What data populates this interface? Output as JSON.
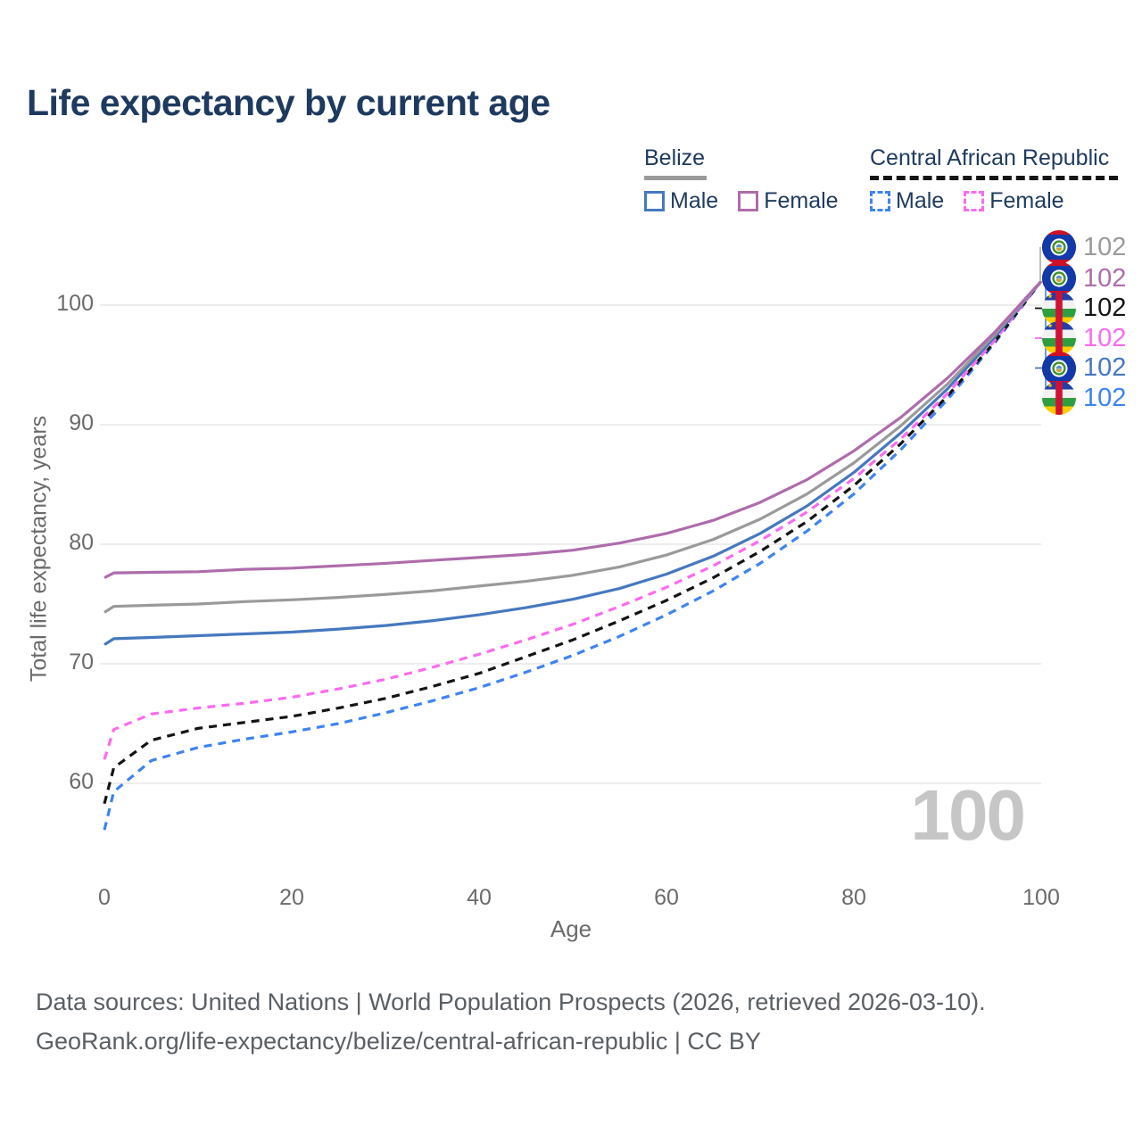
{
  "page": {
    "title": "Life expectancy by current age"
  },
  "legend": {
    "groups": [
      {
        "name": "Belize",
        "line_style": "solid",
        "line_color": "#9a9a9a",
        "items": [
          {
            "label": "Male",
            "color": "#4678bf",
            "dash": false
          },
          {
            "label": "Female",
            "color": "#ae6cab",
            "dash": false
          }
        ]
      },
      {
        "name": "Central African Republic",
        "line_style": "dashed",
        "line_color": "#141414",
        "items": [
          {
            "label": "Male",
            "color": "#3e83f0",
            "dash": true
          },
          {
            "label": "Female",
            "color": "#fb6af1",
            "dash": true
          }
        ]
      }
    ]
  },
  "chart_data": {
    "type": "line",
    "title": "Life expectancy by current age",
    "xlabel": "Age",
    "ylabel": "Total life expectancy, years",
    "x_ticks": [
      0,
      20,
      40,
      60,
      80,
      100
    ],
    "y_ticks": [
      60,
      70,
      80,
      90,
      100
    ],
    "xlim": [
      0,
      100
    ],
    "ylim": [
      56,
      103
    ],
    "grid": "horizontal",
    "legend_position": "top-right",
    "x": [
      0,
      1,
      5,
      10,
      15,
      20,
      25,
      30,
      35,
      40,
      45,
      50,
      55,
      60,
      65,
      70,
      75,
      80,
      85,
      90,
      95,
      100
    ],
    "series": [
      {
        "name": "Central African Republic Male",
        "country": "Central African Republic",
        "sex": "Male",
        "color": "#3e83f0",
        "dash": true,
        "values": [
          56.1,
          59.3,
          61.9,
          63.0,
          63.7,
          64.3,
          65.0,
          65.9,
          66.9,
          68.0,
          69.3,
          70.7,
          72.3,
          74.1,
          76.1,
          78.4,
          81.1,
          84.2,
          87.9,
          92.1,
          96.8,
          102
        ]
      },
      {
        "name": "Central African Republic Both sexes",
        "country": "Central African Republic",
        "sex": "Both",
        "color": "#141414",
        "dash": true,
        "values": [
          58.3,
          61.3,
          63.6,
          64.6,
          65.1,
          65.6,
          66.3,
          67.1,
          68.1,
          69.2,
          70.6,
          72.0,
          73.6,
          75.3,
          77.2,
          79.4,
          81.9,
          84.9,
          88.4,
          92.4,
          96.9,
          102
        ]
      },
      {
        "name": "Central African Republic Female",
        "country": "Central African Republic",
        "sex": "Female",
        "color": "#fb6af1",
        "dash": true,
        "values": [
          62.0,
          64.5,
          65.8,
          66.3,
          66.7,
          67.2,
          67.9,
          68.7,
          69.7,
          70.8,
          72.0,
          73.3,
          74.8,
          76.4,
          78.2,
          80.3,
          82.7,
          85.5,
          88.8,
          92.6,
          97.0,
          102
        ]
      },
      {
        "name": "Belize Male",
        "country": "Belize",
        "sex": "Male",
        "color": "#4678bf",
        "dash": false,
        "values": [
          71.6,
          72.1,
          72.2,
          72.35,
          72.5,
          72.65,
          72.9,
          73.2,
          73.6,
          74.1,
          74.7,
          75.4,
          76.3,
          77.5,
          79.0,
          80.9,
          83.2,
          86.0,
          89.3,
          93.0,
          97.3,
          102
        ]
      },
      {
        "name": "Belize Both sexes",
        "country": "Belize",
        "sex": "Both",
        "color": "#9a9a9a",
        "dash": false,
        "values": [
          74.3,
          74.8,
          74.9,
          75.0,
          75.2,
          75.35,
          75.55,
          75.8,
          76.1,
          76.5,
          76.9,
          77.4,
          78.1,
          79.1,
          80.4,
          82.1,
          84.2,
          86.8,
          89.9,
          93.4,
          97.5,
          102
        ]
      },
      {
        "name": "Belize Female",
        "country": "Belize",
        "sex": "Female",
        "color": "#ae6cab",
        "dash": false,
        "values": [
          77.2,
          77.6,
          77.65,
          77.7,
          77.9,
          78.0,
          78.2,
          78.4,
          78.65,
          78.9,
          79.15,
          79.5,
          80.1,
          80.9,
          82.0,
          83.5,
          85.4,
          87.8,
          90.6,
          93.9,
          97.7,
          102
        ]
      }
    ]
  },
  "end_labels": [
    {
      "value": "102",
      "color": "#9a9a9a",
      "flag": "belize",
      "series": "Belize Both sexes"
    },
    {
      "value": "102",
      "color": "#ae6cab",
      "flag": "belize",
      "series": "Belize Female"
    },
    {
      "value": "102",
      "color": "#141414",
      "flag": "car",
      "series": "Central African Republic Both sexes"
    },
    {
      "value": "102",
      "color": "#fb6af1",
      "flag": "car",
      "series": "Central African Republic Female"
    },
    {
      "value": "102",
      "color": "#4678bf",
      "flag": "belize",
      "series": "Belize Male"
    },
    {
      "value": "102",
      "color": "#3e83f0",
      "flag": "car",
      "series": "Central African Republic Male"
    }
  ],
  "watermark": "100",
  "footer": {
    "line1": "Data sources: United Nations | World Population Prospects (2026, retrieved 2026-03-10).",
    "line2": "GeoRank.org/life-expectancy/belize/central-african-republic | CC BY"
  }
}
